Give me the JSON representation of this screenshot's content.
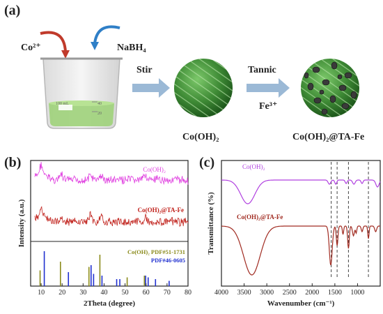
{
  "panel_a": {
    "label": "(a)",
    "reagents": {
      "co_ion": "Co²⁺",
      "reductant": "NaBH₄"
    },
    "beaker": {
      "label": "100 mL",
      "marks": [
        "40",
        "20"
      ]
    },
    "steps": [
      {
        "arrow_label_top": "Stir",
        "arrow_label_bottom": ""
      },
      {
        "arrow_label_top": "Tannic",
        "arrow_label_bottom": "Fe³⁺"
      }
    ],
    "products": [
      "Co(OH)₂",
      "Co(OH)₂@TA-Fe"
    ],
    "colors": {
      "sphere": "#3e8a35",
      "arrow": "#9bb9d6",
      "red_arrow": "#c03a2b",
      "blue_arrow": "#2f7fc7",
      "liquid": "#9ed17a"
    }
  },
  "panel_b": {
    "label": "(b)",
    "chart_data": {
      "type": "line",
      "xlabel": "2Theta (degree)",
      "ylabel": "Intensity (a.u.)",
      "xlim": [
        5,
        80
      ],
      "xticks": [
        10,
        20,
        30,
        40,
        50,
        60,
        70,
        80
      ],
      "series": [
        {
          "name": "Co(OH)₂",
          "color": "#e040e0",
          "peaks": [
            [
              10,
              1.0
            ],
            [
              19.5,
              0.6
            ],
            [
              33.5,
              0.55
            ],
            [
              38.5,
              0.5
            ],
            [
              59.5,
              0.65
            ]
          ]
        },
        {
          "name": "Co(OH)₂@TA-Fe",
          "color": "#c0201a",
          "peaks": [
            [
              10,
              0.7
            ],
            [
              19.5,
              0.5
            ],
            [
              33.5,
              0.9
            ],
            [
              38.5,
              0.5
            ],
            [
              59.5,
              0.4
            ]
          ]
        }
      ],
      "references": [
        {
          "name": "Co(OH)₂ PDF#51-1731",
          "color": "#8a8a1a",
          "lines": [
            [
              9.5,
              0.45
            ],
            [
              19.2,
              0.7
            ],
            [
              32.8,
              0.55
            ],
            [
              38.0,
              0.9
            ],
            [
              51.0,
              0.25
            ],
            [
              59.2,
              0.3
            ]
          ]
        },
        {
          "name": "PDF#46-0605",
          "color": "#2030d0",
          "lines": [
            [
              11.5,
              1.0
            ],
            [
              23.0,
              0.4
            ],
            [
              33.8,
              0.6
            ],
            [
              35.0,
              0.35
            ],
            [
              39.0,
              0.3
            ],
            [
              46.0,
              0.2
            ],
            [
              47.5,
              0.2
            ],
            [
              59.8,
              0.3
            ],
            [
              61.0,
              0.25
            ],
            [
              64.5,
              0.2
            ],
            [
              71.0,
              0.15
            ]
          ]
        }
      ]
    }
  },
  "panel_c": {
    "label": "(c)",
    "chart_data": {
      "type": "line",
      "xlabel": "Wavenumber (cm⁻¹)",
      "ylabel": "Transmittance (%)",
      "xlim": [
        4000,
        500
      ],
      "x_reversed": true,
      "xticks": [
        4000,
        3500,
        3000,
        2500,
        2000,
        1500,
        1000
      ],
      "dashed_refs": [
        1580,
        1450,
        1200,
        760
      ],
      "series": [
        {
          "name": "Co(OH)₂",
          "color": "#b040e0"
        },
        {
          "name": "Co(OH)₂@TA-Fe",
          "color": "#a02a20"
        }
      ]
    }
  }
}
